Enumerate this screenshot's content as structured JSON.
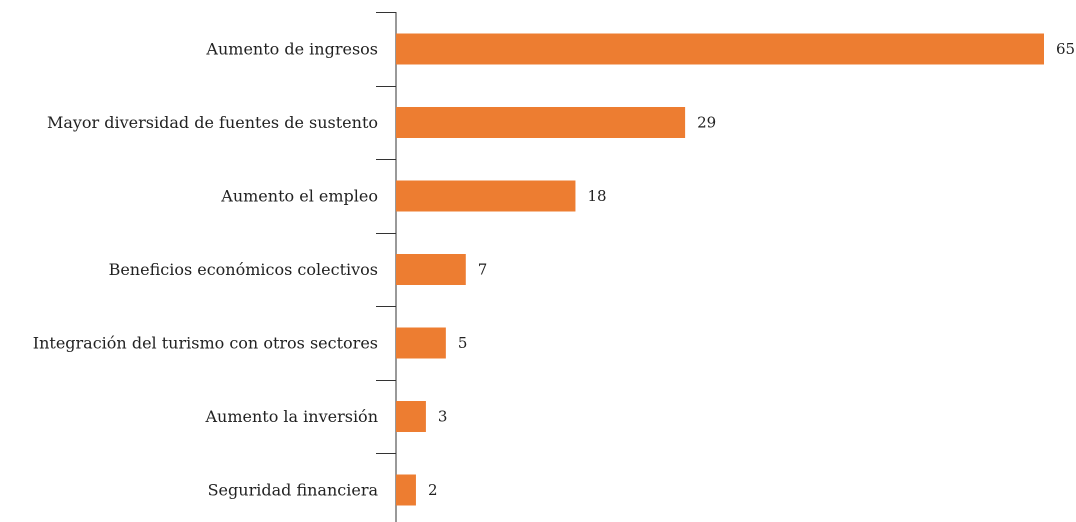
{
  "chart_data": {
    "type": "bar",
    "orientation": "horizontal",
    "title": "",
    "categories": [
      "Aumento de ingresos",
      "Mayor diversidad de fuentes de sustento",
      "Aumento el empleo",
      "Beneficios económicos colectivos",
      "Integración del turismo con otros sectores",
      "Aumento la inversión",
      "Seguridad financiera"
    ],
    "values": [
      65,
      29,
      18,
      7,
      5,
      3,
      2
    ],
    "xlabel": "",
    "ylabel": "",
    "xlim": [
      0,
      65
    ],
    "grid": false,
    "legend": "none",
    "data_labels": true,
    "bar_color": "#ED7D31"
  }
}
